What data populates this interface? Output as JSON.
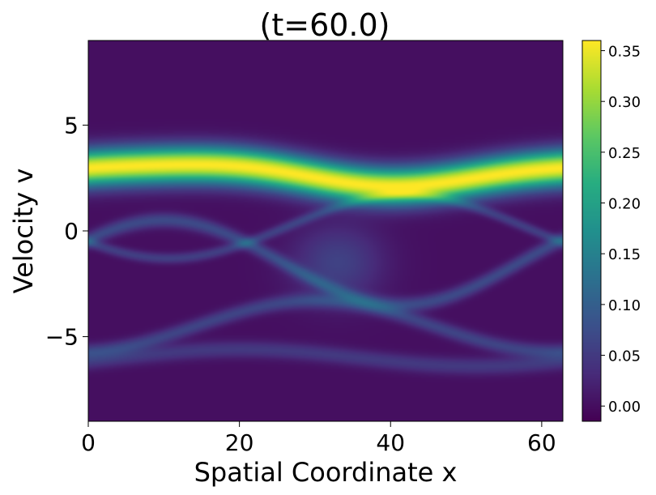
{
  "chart_data": {
    "type": "heatmap",
    "title": "(t=60.0)",
    "xlabel": "Spatial Coordinate x",
    "ylabel": "Velocity v",
    "xlim": [
      0,
      62.8
    ],
    "ylim": [
      -9,
      9
    ],
    "x_ticks": [
      0,
      20,
      40,
      60
    ],
    "x_tick_labels": [
      "0",
      "20",
      "40",
      "60"
    ],
    "y_ticks": [
      -5,
      0,
      5
    ],
    "y_tick_labels": [
      "−5",
      "0",
      "5"
    ],
    "colormap": "viridis",
    "colorbar": {
      "range": [
        -0.015,
        0.36
      ],
      "ticks": [
        0.0,
        0.05,
        0.1,
        0.15,
        0.2,
        0.25,
        0.3,
        0.35
      ],
      "tick_labels": [
        "0.00",
        "0.05",
        "0.10",
        "0.15",
        "0.20",
        "0.25",
        "0.30",
        "0.35"
      ]
    },
    "features": {
      "main_beam": {
        "center_v_range": [
          2.2,
          3.2
        ],
        "peak_density": 0.36,
        "v_spread": 1.0
      },
      "vortex_edges_density": 0.07,
      "background_density": 0.0
    }
  }
}
